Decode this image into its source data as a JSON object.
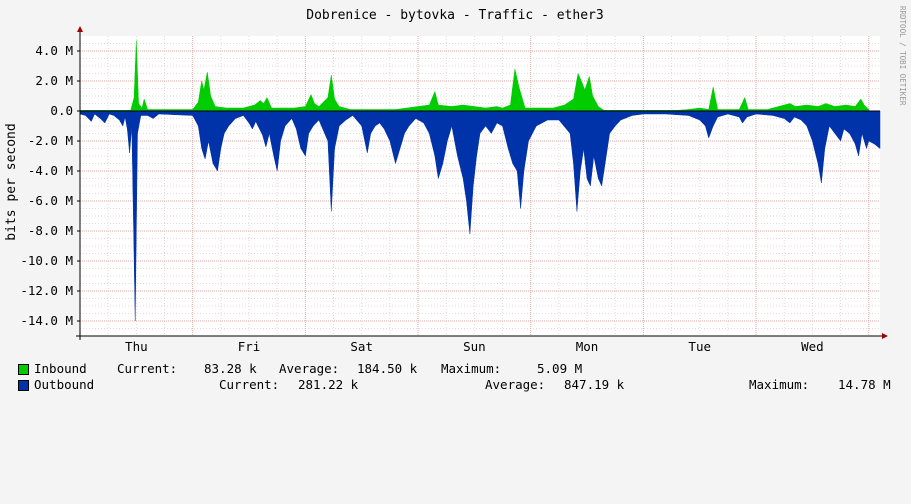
{
  "chart_data": {
    "type": "area",
    "title": "Dobrenice - bytovka - Traffic - ether3",
    "ylabel": "bits per second",
    "watermark": "RRDTOOL / TOBI OETIKER",
    "ylim": [
      -15000000,
      5000000
    ],
    "yticks": [
      4000000,
      2000000,
      0,
      -2000000,
      -4000000,
      -6000000,
      -8000000,
      -10000000,
      -12000000,
      -14000000
    ],
    "ytick_labels": [
      "4.0 M",
      "2.0 M",
      "0.0",
      "-2.0 M",
      "-4.0 M",
      "-6.0 M",
      "-8.0 M",
      "-10.0 M",
      "-12.0 M",
      "-14.0 M"
    ],
    "x_range_days": [
      0,
      7.1
    ],
    "x_day_labels": [
      {
        "label": "Thu",
        "pos": 0.5
      },
      {
        "label": "Fri",
        "pos": 1.5
      },
      {
        "label": "Sat",
        "pos": 2.5
      },
      {
        "label": "Sun",
        "pos": 3.5
      },
      {
        "label": "Mon",
        "pos": 4.5
      },
      {
        "label": "Tue",
        "pos": 5.5
      },
      {
        "label": "Wed",
        "pos": 6.5
      }
    ],
    "grid": true,
    "series": [
      {
        "name": "Inbound",
        "color": "#00cc00",
        "direction": "up",
        "points": [
          [
            0.0,
            0.05
          ],
          [
            0.45,
            0.05
          ],
          [
            0.48,
            0.9
          ],
          [
            0.5,
            4.7
          ],
          [
            0.52,
            0.5
          ],
          [
            0.55,
            0.2
          ],
          [
            0.57,
            0.8
          ],
          [
            0.6,
            0.1
          ],
          [
            1.0,
            0.1
          ],
          [
            1.05,
            0.6
          ],
          [
            1.08,
            2.0
          ],
          [
            1.1,
            1.4
          ],
          [
            1.13,
            2.6
          ],
          [
            1.16,
            1.0
          ],
          [
            1.2,
            0.3
          ],
          [
            1.3,
            0.2
          ],
          [
            1.45,
            0.2
          ],
          [
            1.55,
            0.4
          ],
          [
            1.6,
            0.7
          ],
          [
            1.63,
            0.5
          ],
          [
            1.66,
            0.9
          ],
          [
            1.7,
            0.2
          ],
          [
            1.9,
            0.2
          ],
          [
            2.0,
            0.3
          ],
          [
            2.05,
            1.1
          ],
          [
            2.08,
            0.5
          ],
          [
            2.12,
            0.3
          ],
          [
            2.2,
            0.9
          ],
          [
            2.23,
            2.4
          ],
          [
            2.26,
            0.8
          ],
          [
            2.3,
            0.3
          ],
          [
            2.4,
            0.1
          ],
          [
            2.8,
            0.1
          ],
          [
            2.9,
            0.2
          ],
          [
            3.0,
            0.3
          ],
          [
            3.1,
            0.4
          ],
          [
            3.15,
            1.3
          ],
          [
            3.18,
            0.4
          ],
          [
            3.3,
            0.3
          ],
          [
            3.4,
            0.4
          ],
          [
            3.5,
            0.3
          ],
          [
            3.6,
            0.2
          ],
          [
            3.7,
            0.3
          ],
          [
            3.75,
            0.2
          ],
          [
            3.82,
            0.4
          ],
          [
            3.86,
            2.8
          ],
          [
            3.9,
            1.5
          ],
          [
            3.95,
            0.2
          ],
          [
            4.2,
            0.2
          ],
          [
            4.3,
            0.4
          ],
          [
            4.38,
            0.8
          ],
          [
            4.42,
            2.5
          ],
          [
            4.45,
            2.0
          ],
          [
            4.48,
            1.4
          ],
          [
            4.52,
            2.3
          ],
          [
            4.55,
            1.0
          ],
          [
            4.6,
            0.3
          ],
          [
            4.65,
            0.05
          ],
          [
            5.3,
            0.05
          ],
          [
            5.4,
            0.1
          ],
          [
            5.5,
            0.2
          ],
          [
            5.58,
            0.1
          ],
          [
            5.62,
            1.6
          ],
          [
            5.66,
            0.1
          ],
          [
            5.85,
            0.1
          ],
          [
            5.9,
            0.9
          ],
          [
            5.93,
            0.1
          ],
          [
            6.1,
            0.1
          ],
          [
            6.2,
            0.3
          ],
          [
            6.3,
            0.5
          ],
          [
            6.35,
            0.3
          ],
          [
            6.45,
            0.4
          ],
          [
            6.55,
            0.3
          ],
          [
            6.62,
            0.5
          ],
          [
            6.7,
            0.3
          ],
          [
            6.8,
            0.4
          ],
          [
            6.88,
            0.3
          ],
          [
            6.93,
            0.8
          ],
          [
            6.96,
            0.4
          ],
          [
            7.0,
            0.1
          ]
        ]
      },
      {
        "name": "Outbound",
        "color": "#0033aa",
        "direction": "down",
        "points": [
          [
            0.0,
            -0.2
          ],
          [
            0.05,
            -0.3
          ],
          [
            0.1,
            -0.7
          ],
          [
            0.13,
            -0.2
          ],
          [
            0.18,
            -0.5
          ],
          [
            0.22,
            -0.8
          ],
          [
            0.26,
            -0.2
          ],
          [
            0.3,
            -0.3
          ],
          [
            0.35,
            -0.6
          ],
          [
            0.38,
            -1.0
          ],
          [
            0.4,
            -0.4
          ],
          [
            0.42,
            -1.2
          ],
          [
            0.44,
            -2.8
          ],
          [
            0.46,
            -1.0
          ],
          [
            0.49,
            -14.0
          ],
          [
            0.51,
            -1.5
          ],
          [
            0.54,
            -0.3
          ],
          [
            0.6,
            -0.3
          ],
          [
            0.65,
            -0.5
          ],
          [
            0.7,
            -0.2
          ],
          [
            1.0,
            -0.3
          ],
          [
            1.05,
            -1.0
          ],
          [
            1.08,
            -2.5
          ],
          [
            1.11,
            -3.2
          ],
          [
            1.14,
            -2.0
          ],
          [
            1.18,
            -3.5
          ],
          [
            1.22,
            -4.0
          ],
          [
            1.25,
            -2.5
          ],
          [
            1.28,
            -1.5
          ],
          [
            1.32,
            -1.0
          ],
          [
            1.38,
            -0.5
          ],
          [
            1.45,
            -0.3
          ],
          [
            1.5,
            -0.8
          ],
          [
            1.53,
            -1.2
          ],
          [
            1.56,
            -0.7
          ],
          [
            1.62,
            -1.6
          ],
          [
            1.65,
            -2.4
          ],
          [
            1.68,
            -1.5
          ],
          [
            1.72,
            -3.0
          ],
          [
            1.75,
            -4.0
          ],
          [
            1.78,
            -2.0
          ],
          [
            1.82,
            -1.0
          ],
          [
            1.88,
            -0.5
          ],
          [
            1.92,
            -1.2
          ],
          [
            1.96,
            -2.5
          ],
          [
            2.0,
            -3.0
          ],
          [
            2.03,
            -1.5
          ],
          [
            2.07,
            -1.0
          ],
          [
            2.12,
            -0.6
          ],
          [
            2.2,
            -2.0
          ],
          [
            2.23,
            -6.7
          ],
          [
            2.26,
            -2.5
          ],
          [
            2.3,
            -1.0
          ],
          [
            2.36,
            -0.6
          ],
          [
            2.42,
            -0.3
          ],
          [
            2.5,
            -1.0
          ],
          [
            2.55,
            -2.8
          ],
          [
            2.58,
            -1.5
          ],
          [
            2.62,
            -1.0
          ],
          [
            2.66,
            -0.8
          ],
          [
            2.7,
            -1.2
          ],
          [
            2.75,
            -2.0
          ],
          [
            2.8,
            -3.5
          ],
          [
            2.84,
            -2.5
          ],
          [
            2.88,
            -1.5
          ],
          [
            2.92,
            -1.0
          ],
          [
            2.98,
            -0.5
          ],
          [
            3.05,
            -0.8
          ],
          [
            3.1,
            -1.5
          ],
          [
            3.15,
            -3.0
          ],
          [
            3.18,
            -4.5
          ],
          [
            3.22,
            -3.5
          ],
          [
            3.26,
            -2.0
          ],
          [
            3.3,
            -1.0
          ],
          [
            3.35,
            -3.0
          ],
          [
            3.4,
            -4.5
          ],
          [
            3.43,
            -6.0
          ],
          [
            3.46,
            -8.2
          ],
          [
            3.49,
            -5.0
          ],
          [
            3.52,
            -3.0
          ],
          [
            3.55,
            -1.5
          ],
          [
            3.6,
            -1.0
          ],
          [
            3.65,
            -1.5
          ],
          [
            3.7,
            -0.8
          ],
          [
            3.75,
            -1.0
          ],
          [
            3.8,
            -2.5
          ],
          [
            3.84,
            -3.5
          ],
          [
            3.88,
            -4.0
          ],
          [
            3.91,
            -6.5
          ],
          [
            3.94,
            -4.0
          ],
          [
            3.98,
            -2.0
          ],
          [
            4.05,
            -1.0
          ],
          [
            4.15,
            -0.6
          ],
          [
            4.25,
            -0.6
          ],
          [
            4.35,
            -1.5
          ],
          [
            4.38,
            -3.5
          ],
          [
            4.41,
            -6.7
          ],
          [
            4.44,
            -4.0
          ],
          [
            4.47,
            -2.5
          ],
          [
            4.5,
            -4.5
          ],
          [
            4.53,
            -5.0
          ],
          [
            4.56,
            -3.0
          ],
          [
            4.6,
            -4.5
          ],
          [
            4.63,
            -5.0
          ],
          [
            4.66,
            -3.5
          ],
          [
            4.7,
            -1.5
          ],
          [
            4.75,
            -1.0
          ],
          [
            4.8,
            -0.6
          ],
          [
            4.9,
            -0.3
          ],
          [
            5.0,
            -0.2
          ],
          [
            5.2,
            -0.2
          ],
          [
            5.4,
            -0.3
          ],
          [
            5.5,
            -0.6
          ],
          [
            5.55,
            -1.0
          ],
          [
            5.58,
            -1.8
          ],
          [
            5.62,
            -1.0
          ],
          [
            5.66,
            -0.4
          ],
          [
            5.75,
            -0.2
          ],
          [
            5.85,
            -0.4
          ],
          [
            5.88,
            -0.8
          ],
          [
            5.92,
            -0.4
          ],
          [
            6.0,
            -0.2
          ],
          [
            6.15,
            -0.3
          ],
          [
            6.25,
            -0.5
          ],
          [
            6.3,
            -0.8
          ],
          [
            6.34,
            -0.4
          ],
          [
            6.4,
            -0.6
          ],
          [
            6.45,
            -1.0
          ],
          [
            6.5,
            -2.0
          ],
          [
            6.55,
            -3.5
          ],
          [
            6.58,
            -4.8
          ],
          [
            6.61,
            -2.5
          ],
          [
            6.65,
            -1.0
          ],
          [
            6.7,
            -1.5
          ],
          [
            6.75,
            -2.0
          ],
          [
            6.78,
            -1.2
          ],
          [
            6.83,
            -1.5
          ],
          [
            6.88,
            -2.2
          ],
          [
            6.91,
            -3.0
          ],
          [
            6.94,
            -1.5
          ],
          [
            6.98,
            -2.5
          ],
          [
            7.0,
            -2.0
          ],
          [
            7.05,
            -2.2
          ],
          [
            7.1,
            -2.5
          ]
        ]
      }
    ],
    "legend": [
      {
        "name": "Inbound",
        "color": "#00cc00",
        "current_label": "Current:",
        "current": "83.28 k",
        "average_label": "Average:",
        "average": "184.50 k",
        "maximum_label": "Maximum:",
        "maximum": "5.09 M"
      },
      {
        "name": "Outbound",
        "color": "#0033aa",
        "current_label": "Current:",
        "current": "281.22 k",
        "average_label": "Average:",
        "average": "847.19 k",
        "maximum_label": "Maximum:",
        "maximum": "14.78 M"
      }
    ]
  }
}
